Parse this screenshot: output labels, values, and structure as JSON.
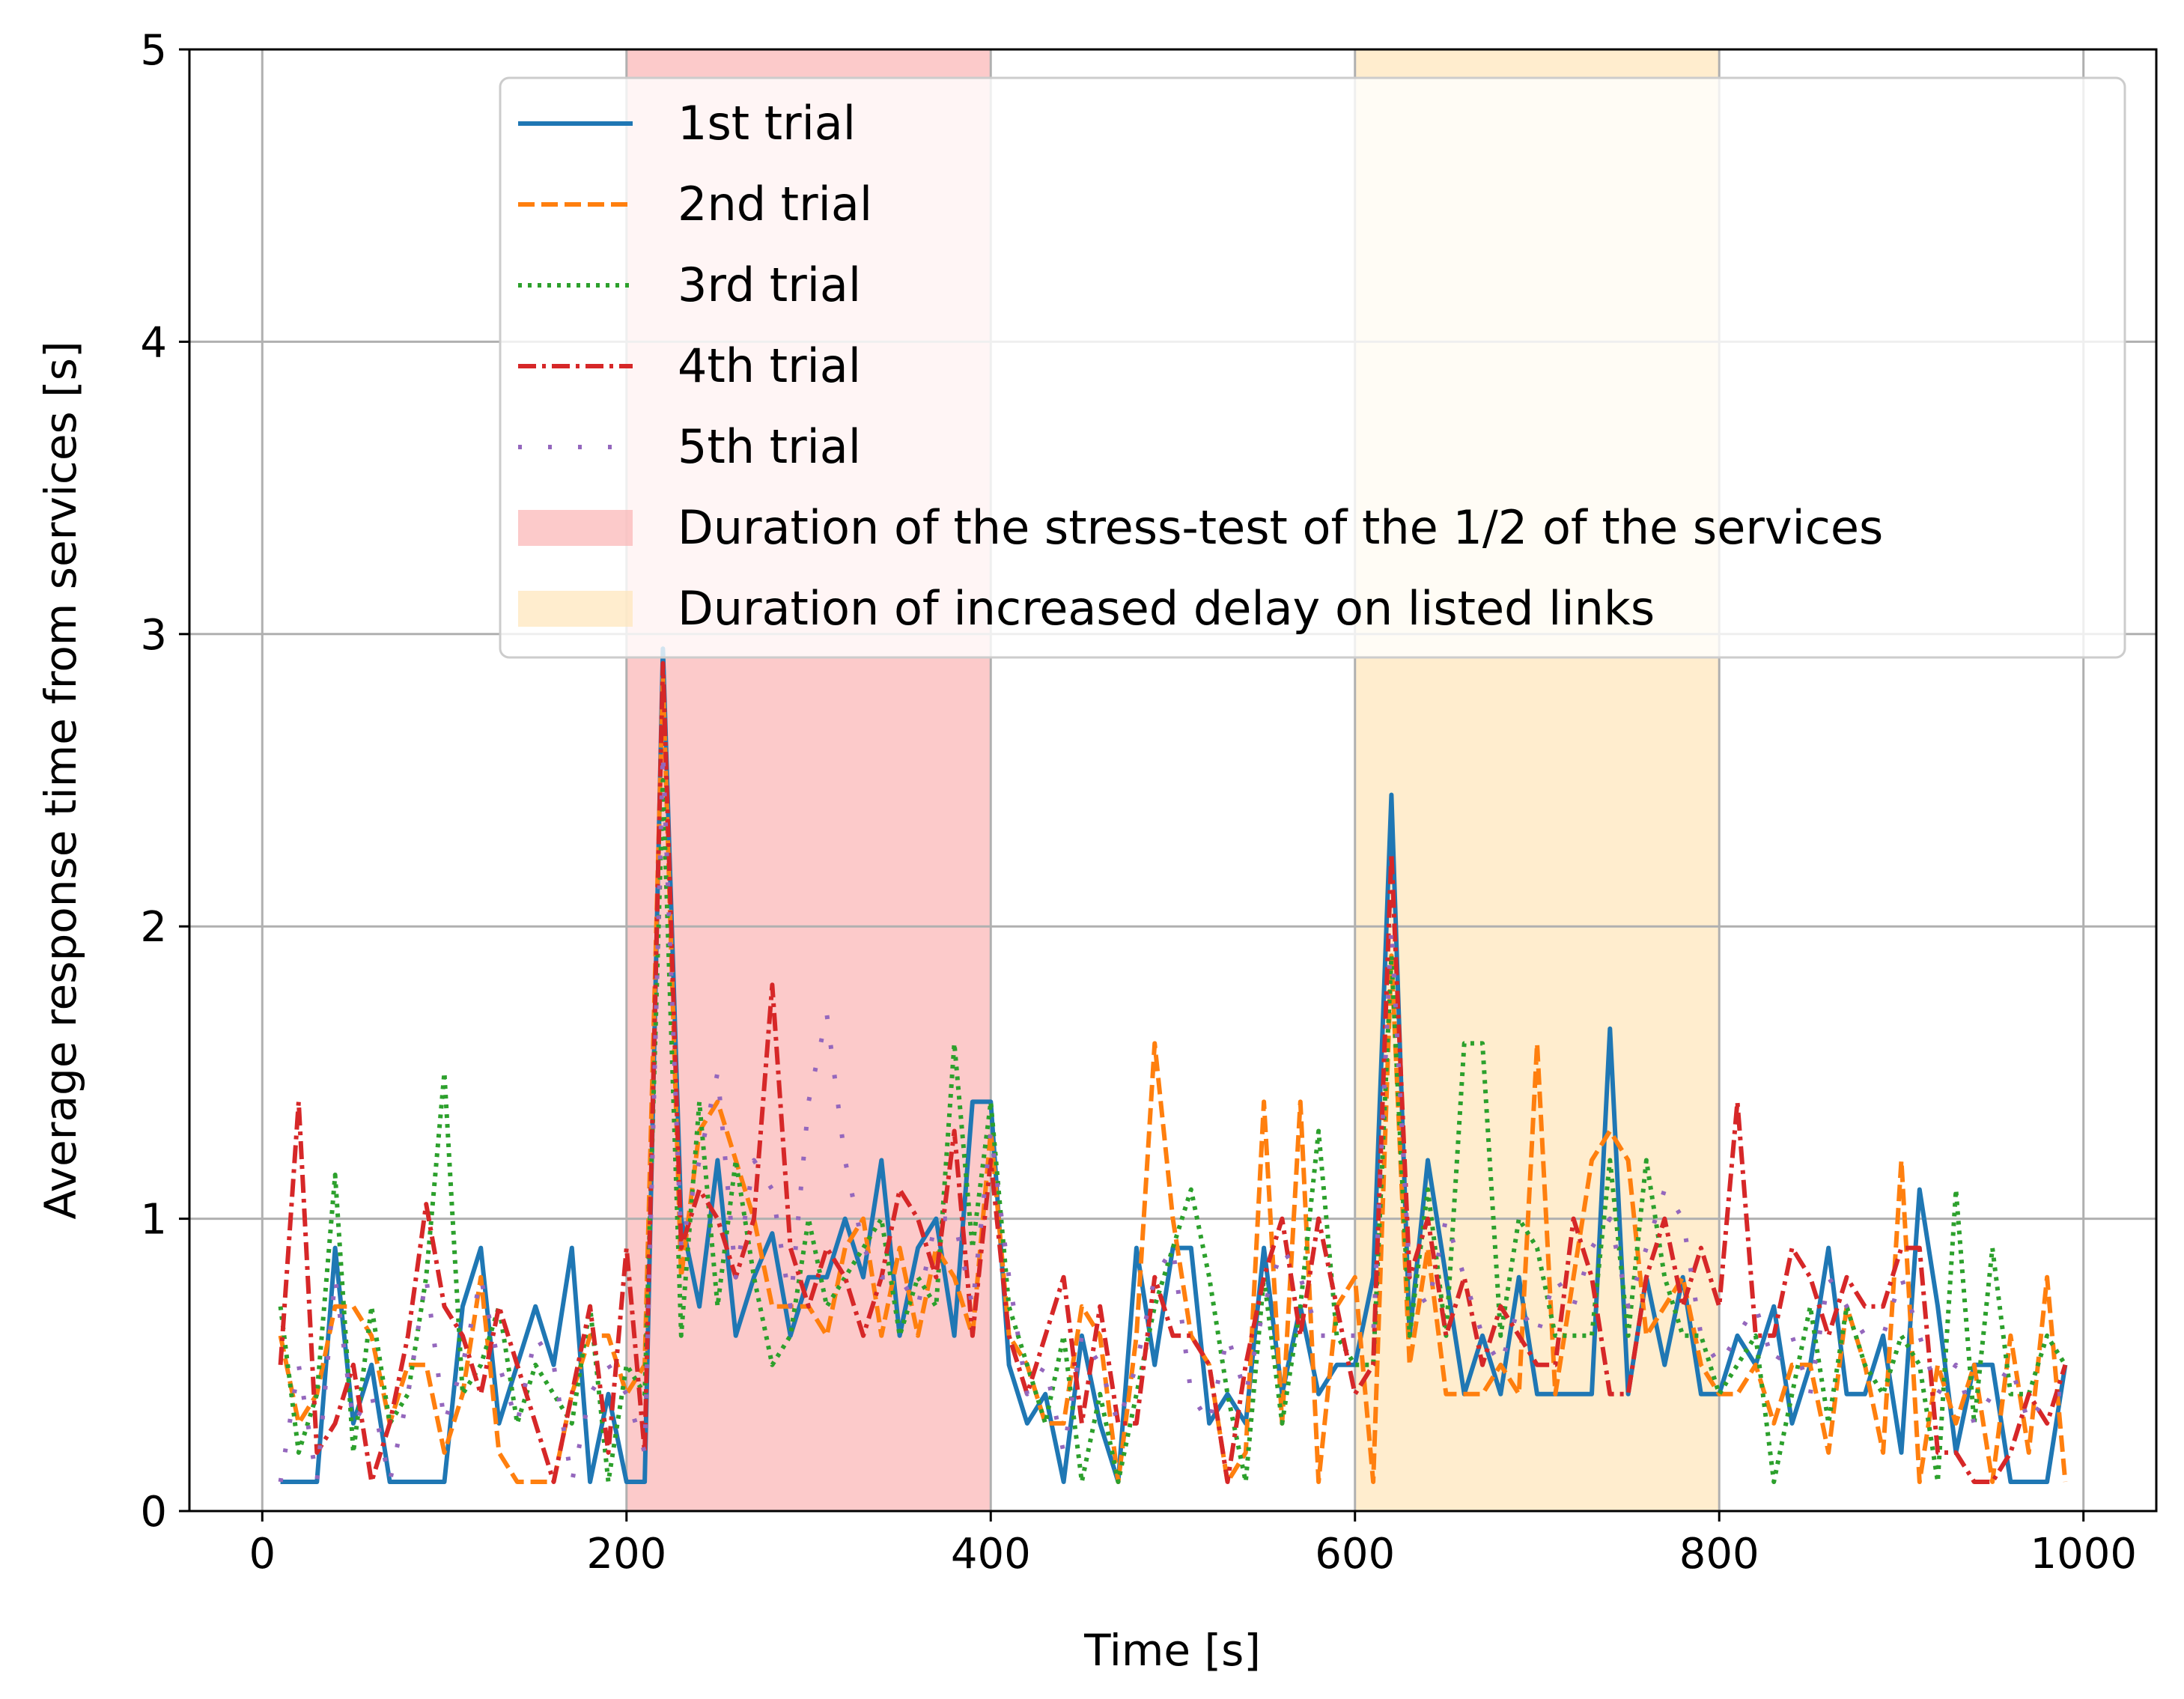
{
  "chart_data": {
    "type": "line",
    "title": "",
    "xlabel": "Time [s]",
    "ylabel": "Average response time from services [s]",
    "xlim": [
      -40,
      1040
    ],
    "ylim": [
      0,
      5
    ],
    "xticks": [
      0,
      200,
      400,
      600,
      800,
      1000
    ],
    "yticks": [
      0,
      1,
      2,
      3,
      4,
      5
    ],
    "grid": true,
    "legend_position": "top-right",
    "spans": [
      {
        "label": "Duration of the stress-test of the 1/2 of the services",
        "x0": 200,
        "x1": 400,
        "color": "#fbb4b4",
        "opacity": 0.7
      },
      {
        "label": "Duration of increased delay on listed links",
        "x0": 600,
        "x1": 800,
        "color": "#ffe3b3",
        "opacity": 0.65
      }
    ],
    "x": [
      10,
      20,
      30,
      40,
      50,
      60,
      70,
      80,
      90,
      100,
      110,
      120,
      130,
      140,
      150,
      160,
      170,
      180,
      190,
      200,
      210,
      220,
      230,
      240,
      250,
      260,
      270,
      280,
      290,
      300,
      310,
      320,
      330,
      340,
      350,
      360,
      370,
      380,
      390,
      400,
      410,
      420,
      430,
      440,
      450,
      460,
      470,
      480,
      490,
      500,
      510,
      520,
      530,
      540,
      550,
      560,
      570,
      580,
      590,
      600,
      610,
      620,
      630,
      640,
      650,
      660,
      670,
      680,
      690,
      700,
      710,
      720,
      730,
      740,
      750,
      760,
      770,
      780,
      790,
      800,
      810,
      820,
      830,
      840,
      850,
      860,
      870,
      880,
      890,
      900,
      910,
      920,
      930,
      940,
      950,
      960,
      970,
      980,
      990
    ],
    "series": [
      {
        "name": "1st trial",
        "color": "#1f77b4",
        "style": "solid",
        "values": [
          0.1,
          0.1,
          0.1,
          0.9,
          0.3,
          0.5,
          0.1,
          0.1,
          0.1,
          0.1,
          0.7,
          0.9,
          0.3,
          0.5,
          0.7,
          0.5,
          0.9,
          0.1,
          0.4,
          0.1,
          0.1,
          2.95,
          1.0,
          0.7,
          1.2,
          0.6,
          0.8,
          0.95,
          0.6,
          0.8,
          0.8,
          1.0,
          0.8,
          1.2,
          0.6,
          0.9,
          1.0,
          0.6,
          1.4,
          1.4,
          0.5,
          0.3,
          0.4,
          0.1,
          0.6,
          0.3,
          0.1,
          0.9,
          0.5,
          0.9,
          0.9,
          0.3,
          0.4,
          0.3,
          0.9,
          0.4,
          0.7,
          0.4,
          0.5,
          0.5,
          0.8,
          2.45,
          0.6,
          1.2,
          0.8,
          0.4,
          0.6,
          0.4,
          0.8,
          0.4,
          0.4,
          0.4,
          0.4,
          1.65,
          0.4,
          0.8,
          0.5,
          0.8,
          0.4,
          0.4,
          0.6,
          0.5,
          0.7,
          0.3,
          0.5,
          0.9,
          0.4,
          0.4,
          0.6,
          0.2,
          1.1,
          0.7,
          0.2,
          0.5,
          0.5,
          0.1,
          0.1,
          0.1,
          0.5
        ]
      },
      {
        "name": "2nd trial",
        "color": "#ff7f0e",
        "style": "dashed",
        "values": [
          0.6,
          0.3,
          0.4,
          0.7,
          0.7,
          0.6,
          0.3,
          0.5,
          0.5,
          0.2,
          0.4,
          0.8,
          0.2,
          0.1,
          0.1,
          0.1,
          0.4,
          0.6,
          0.6,
          0.4,
          0.5,
          2.85,
          0.8,
          1.3,
          1.4,
          1.2,
          1.0,
          0.7,
          0.7,
          0.7,
          0.6,
          0.9,
          1.0,
          0.6,
          0.9,
          0.6,
          0.9,
          0.8,
          0.6,
          1.3,
          0.6,
          0.5,
          0.3,
          0.3,
          0.7,
          0.6,
          0.1,
          0.6,
          1.6,
          1.0,
          0.6,
          0.5,
          0.1,
          0.2,
          1.4,
          0.3,
          1.4,
          0.1,
          0.7,
          0.8,
          0.1,
          1.9,
          0.5,
          0.9,
          0.4,
          0.4,
          0.4,
          0.5,
          0.4,
          1.6,
          0.4,
          0.8,
          1.2,
          1.3,
          1.2,
          0.6,
          0.7,
          0.8,
          0.5,
          0.4,
          0.4,
          0.5,
          0.3,
          0.5,
          0.5,
          0.2,
          0.7,
          0.5,
          0.2,
          1.2,
          0.1,
          0.5,
          0.3,
          0.5,
          0.1,
          0.6,
          0.2,
          0.8,
          0.1
        ]
      },
      {
        "name": "3rd trial",
        "color": "#2ca02c",
        "style": "dotted",
        "values": [
          0.7,
          0.2,
          0.4,
          1.15,
          0.2,
          0.7,
          0.3,
          0.4,
          0.8,
          1.5,
          0.4,
          0.5,
          0.7,
          0.3,
          0.5,
          0.4,
          0.3,
          0.7,
          0.1,
          0.5,
          0.4,
          2.5,
          0.6,
          1.4,
          0.7,
          1.2,
          0.8,
          0.5,
          0.6,
          1.0,
          0.7,
          0.8,
          0.9,
          1.0,
          0.6,
          0.8,
          0.7,
          1.6,
          0.9,
          1.4,
          0.7,
          0.5,
          0.3,
          0.6,
          0.1,
          0.4,
          0.1,
          0.4,
          0.7,
          0.9,
          1.1,
          0.8,
          0.4,
          0.1,
          0.8,
          0.3,
          0.7,
          1.3,
          0.6,
          0.5,
          0.5,
          1.9,
          0.6,
          1.1,
          0.6,
          1.6,
          1.6,
          0.6,
          1.0,
          0.9,
          0.6,
          0.6,
          0.6,
          1.2,
          0.6,
          1.2,
          0.8,
          0.6,
          0.6,
          0.4,
          0.5,
          0.6,
          0.1,
          0.4,
          0.7,
          0.3,
          0.7,
          0.5,
          0.4,
          0.6,
          0.5,
          0.1,
          1.1,
          0.3,
          0.9,
          0.4,
          0.4,
          0.6,
          0.5
        ]
      },
      {
        "name": "4th trial",
        "color": "#d62728",
        "style": "dashdot",
        "values": [
          0.5,
          1.4,
          0.2,
          0.3,
          0.5,
          0.1,
          0.3,
          0.6,
          1.05,
          0.7,
          0.6,
          0.4,
          0.7,
          0.5,
          0.3,
          0.1,
          0.4,
          0.7,
          0.2,
          0.9,
          0.2,
          2.9,
          0.9,
          1.1,
          1.0,
          0.8,
          1.0,
          1.8,
          0.9,
          0.7,
          0.9,
          0.8,
          0.6,
          0.8,
          1.1,
          1.0,
          0.8,
          1.3,
          0.6,
          1.2,
          0.6,
          0.4,
          0.6,
          0.8,
          0.3,
          0.7,
          0.3,
          0.3,
          0.8,
          0.6,
          0.6,
          0.5,
          0.1,
          0.5,
          0.8,
          1.0,
          0.6,
          1.0,
          0.7,
          0.4,
          0.5,
          2.25,
          0.8,
          1.0,
          0.6,
          0.8,
          0.5,
          0.7,
          0.6,
          0.5,
          0.5,
          1.0,
          0.8,
          0.4,
          0.4,
          0.8,
          1.0,
          0.7,
          0.9,
          0.7,
          1.4,
          0.6,
          0.6,
          0.9,
          0.8,
          0.6,
          0.8,
          0.7,
          0.7,
          0.9,
          0.9,
          0.2,
          0.2,
          0.1,
          0.1,
          0.2,
          0.4,
          0.3,
          0.5
        ]
      },
      {
        "name": "5th trial",
        "color": "#9467bd",
        "style": "sparse-dots",
        "values": [
          0.1,
          0.5,
          0.1,
          0.8,
          0.3,
          0.4,
          0.1,
          0.4,
          0.8,
          0.3,
          0.5,
          0.8,
          0.5,
          0.3,
          0.6,
          0.5,
          0.1,
          0.4,
          0.5,
          0.4,
          0.2,
          2.6,
          0.9,
          1.2,
          1.5,
          0.8,
          1.2,
          1.1,
          0.7,
          1.4,
          1.7,
          1.2,
          0.9,
          0.8,
          0.8,
          0.7,
          1.0,
          1.0,
          0.7,
          1.3,
          0.8,
          0.4,
          0.5,
          0.2,
          0.6,
          0.5,
          0.3,
          0.5,
          0.8,
          0.9,
          0.4,
          0.3,
          0.6,
          0.4,
          0.7,
          0.9,
          0.8,
          0.6,
          0.6,
          0.6,
          0.6,
          2.0,
          0.8,
          0.7,
          1.0,
          0.8,
          0.6,
          0.5,
          0.7,
          0.6,
          0.8,
          0.7,
          0.9,
          1.0,
          0.7,
          0.9,
          1.1,
          1.0,
          0.6,
          0.5,
          0.6,
          0.7,
          0.5,
          0.6,
          0.4,
          0.8,
          0.7,
          0.6,
          0.6,
          0.8,
          0.6,
          0.4,
          0.5,
          0.3,
          0.4,
          0.5,
          0.3,
          0.4,
          0.4
        ]
      }
    ]
  }
}
